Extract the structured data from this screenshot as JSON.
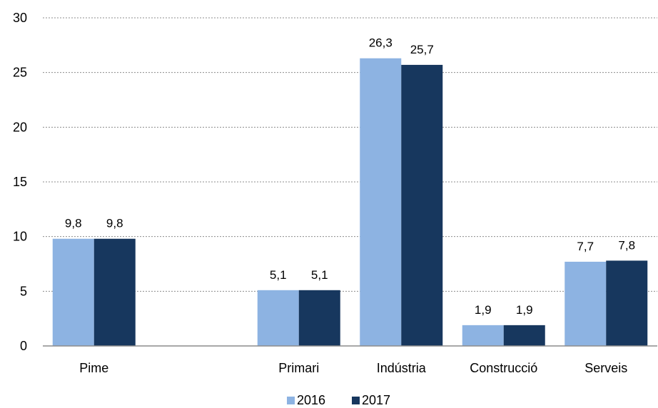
{
  "chart_data": {
    "type": "bar",
    "categories": [
      "Pime",
      "",
      "Primari",
      "Indústria",
      "Construcció",
      "Serveis"
    ],
    "series": [
      {
        "name": "2016",
        "values": [
          9.8,
          null,
          5.1,
          26.3,
          1.9,
          7.7
        ],
        "labels": [
          "9,8",
          "",
          "5,1",
          "26,3",
          "1,9",
          "7,7"
        ],
        "color": "#8db3e2"
      },
      {
        "name": "2017",
        "values": [
          9.8,
          null,
          5.1,
          25.7,
          1.9,
          7.8
        ],
        "labels": [
          "9,8",
          "",
          "5,1",
          "25,7",
          "1,9",
          "7,8"
        ],
        "color": "#17375e"
      }
    ],
    "y_ticks": [
      "0",
      "5",
      "10",
      "15",
      "20",
      "25",
      "30"
    ],
    "ylim": [
      0,
      30
    ],
    "grid": true,
    "legend_position": "bottom"
  }
}
